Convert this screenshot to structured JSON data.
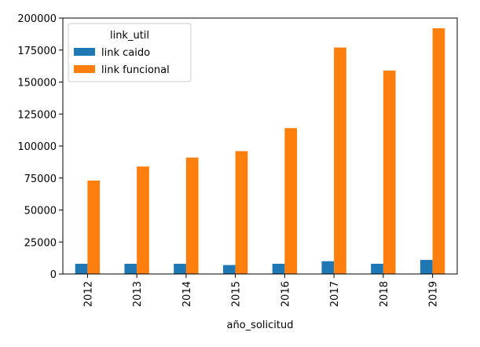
{
  "chart_data": {
    "type": "bar",
    "title": "",
    "xlabel": "año_solicitud",
    "ylabel": "",
    "categories": [
      "2012",
      "2013",
      "2014",
      "2015",
      "2016",
      "2017",
      "2018",
      "2019"
    ],
    "series": [
      {
        "name": "link caido",
        "color": "#1f77b4",
        "values": [
          8000,
          8000,
          8000,
          7000,
          8000,
          10000,
          8000,
          11000
        ]
      },
      {
        "name": "link funcional",
        "color": "#ff7f0e",
        "values": [
          73000,
          84000,
          91000,
          96000,
          114000,
          177000,
          159000,
          192000
        ]
      }
    ],
    "ylim": [
      0,
      200000
    ],
    "yticks": [
      "0",
      "25000",
      "50000",
      "75000",
      "100000",
      "125000",
      "150000",
      "175000",
      "200000"
    ],
    "grid": false,
    "legend": {
      "title": "link_util",
      "placement": "top-left"
    }
  }
}
